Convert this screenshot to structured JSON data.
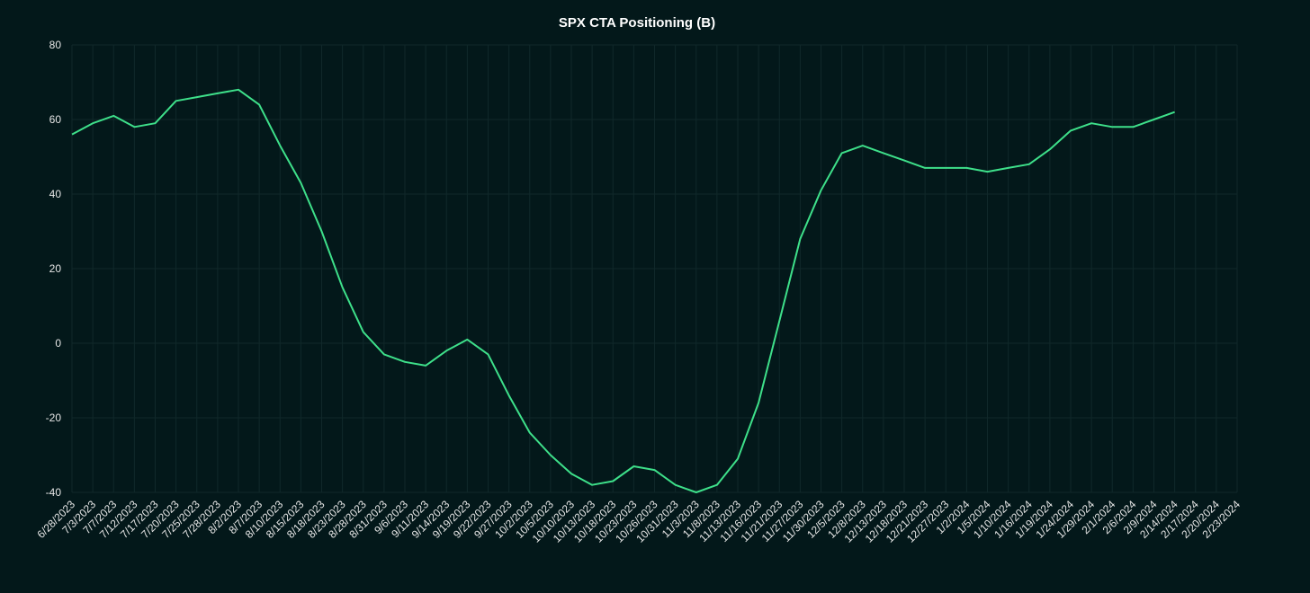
{
  "chart_data": {
    "type": "line",
    "title": "SPX CTA Positioning (B)",
    "categories": [
      "6/28/2023",
      "7/3/2023",
      "7/7/2023",
      "7/12/2023",
      "7/17/2023",
      "7/20/2023",
      "7/25/2023",
      "7/28/2023",
      "8/2/2023",
      "8/7/2023",
      "8/10/2023",
      "8/15/2023",
      "8/18/2023",
      "8/23/2023",
      "8/28/2023",
      "8/31/2023",
      "9/6/2023",
      "9/11/2023",
      "9/14/2023",
      "9/19/2023",
      "9/22/2023",
      "9/27/2023",
      "10/2/2023",
      "10/5/2023",
      "10/10/2023",
      "10/13/2023",
      "10/18/2023",
      "10/23/2023",
      "10/26/2023",
      "10/31/2023",
      "11/3/2023",
      "11/8/2023",
      "11/13/2023",
      "11/16/2023",
      "11/21/2023",
      "11/27/2023",
      "11/30/2023",
      "12/5/2023",
      "12/8/2023",
      "12/13/2023",
      "12/18/2023",
      "12/21/2023",
      "12/27/2023",
      "1/2/2024",
      "1/5/2024",
      "1/10/2024",
      "1/16/2024",
      "1/19/2024",
      "1/24/2024",
      "1/29/2024",
      "2/1/2024",
      "2/6/2024",
      "2/9/2024",
      "2/14/2024",
      "2/17/2024",
      "2/20/2024",
      "2/23/2024"
    ],
    "series": [
      {
        "name": "SPX CTA Positioning",
        "color": "#3ee08a",
        "values": [
          56,
          59,
          61,
          58,
          59,
          65,
          66,
          67,
          68,
          64,
          53,
          43,
          30,
          15,
          3,
          -3,
          -5,
          -6,
          -2,
          1,
          -3,
          -14,
          -24,
          -30,
          -35,
          -38,
          -37,
          -33,
          -34,
          -38,
          -40,
          -38,
          -31,
          -16,
          6,
          28,
          41,
          51,
          53,
          51,
          49,
          47,
          47,
          47,
          46,
          47,
          48,
          52,
          57,
          59,
          58,
          58,
          60,
          62,
          null,
          null,
          null
        ]
      }
    ],
    "ylim": [
      -40,
      80
    ],
    "yticks": [
      -40,
      -20,
      0,
      20,
      40,
      60,
      80
    ],
    "grid": true
  }
}
